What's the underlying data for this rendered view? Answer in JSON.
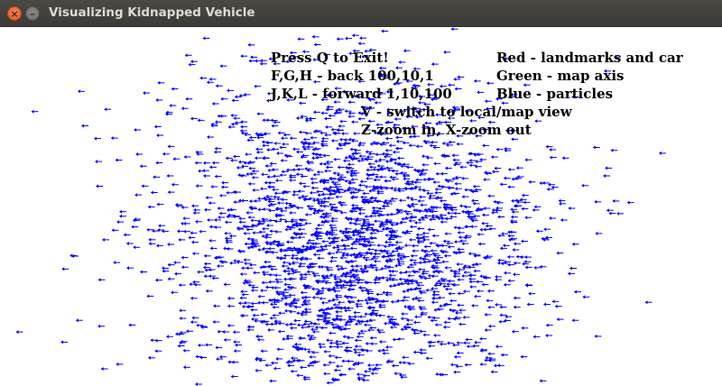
{
  "window": {
    "title": "Visualizing Kidnapped Vehicle",
    "close_glyph": "×",
    "minimize_glyph": "–"
  },
  "help": {
    "line1": "Press Q to Exit!",
    "line2": "F,G,H - back 100,10,1",
    "line3": "J,K,L - forward 1,10,100",
    "line4": "V - switch to local/map view",
    "line5": "Z-zoom in, X-zoom out",
    "legend_red": "Red - landmarks and car",
    "legend_green": "Green - map axis",
    "legend_blue": "Blue - particles"
  },
  "colors": {
    "particle": "#0000ff",
    "text": "#000000",
    "background": "#ffffff",
    "titlebar": "#3c3b37"
  },
  "icons": {
    "close": "close-icon",
    "minimize": "minimize-icon",
    "particle": "arrow-left-icon"
  }
}
